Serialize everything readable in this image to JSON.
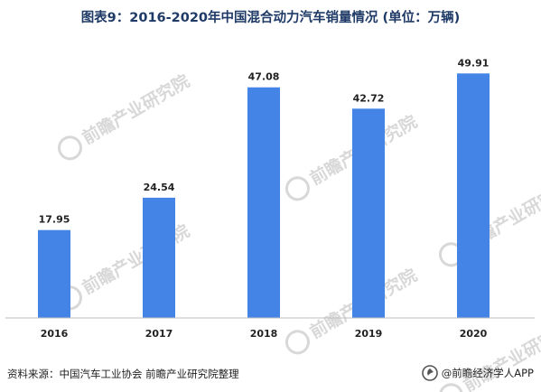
{
  "figure": {
    "title": "图表9：2016-2020年中国混合动力汽车销量情况 (单位：万辆)",
    "source": "资料来源：中国汽车工业协会 前瞻产业研究院整理",
    "credit": "@前瞻经济学人APP",
    "watermark": "前瞻产业研究院"
  },
  "colors": {
    "bar": "#4384e6",
    "axis": "#bfbfbf",
    "title": "#1f3a66",
    "watermark": "#d2d2d2"
  },
  "icons": {
    "credit": "qianzhan-logo-icon",
    "watermark": "qianzhan-watermark-icon"
  },
  "chart_data": {
    "type": "bar",
    "title": "图表9：2016-2020年中国混合动力汽车销量情况 (单位：万辆)",
    "categories": [
      "2016",
      "2017",
      "2018",
      "2019",
      "2020"
    ],
    "values": [
      17.95,
      24.54,
      47.08,
      42.72,
      49.91
    ],
    "value_labels": [
      "17.95",
      "24.54",
      "47.08",
      "42.72",
      "49.91"
    ],
    "xlabel": "",
    "ylabel": "",
    "ylim": [
      0,
      52
    ],
    "grid": false,
    "legend": "none"
  }
}
